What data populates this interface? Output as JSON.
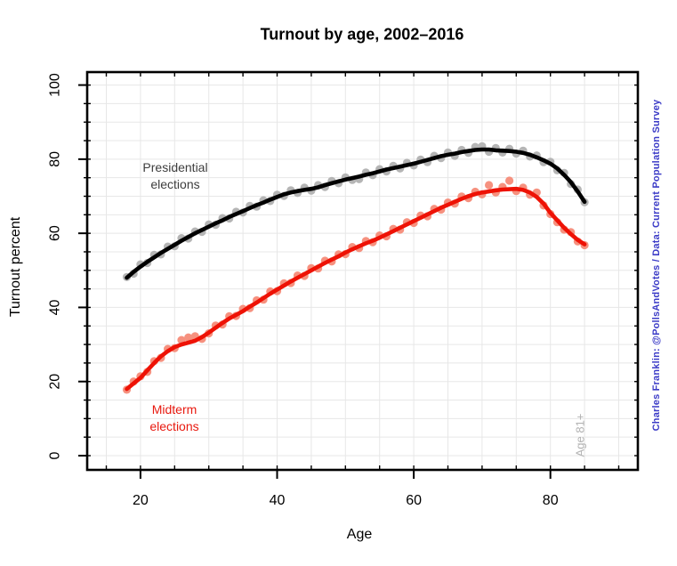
{
  "title": "Turnout by age, 2002–2016",
  "credit": "Charles Franklin: @PollsAndVotes / Data: Current Population Survey",
  "annotations": {
    "presidential": "Presidential\nelections",
    "midterm": "Midterm\nelections",
    "age81": "Age 81+"
  },
  "colors": {
    "background": "#ffffff",
    "box": "#000000",
    "grid": "#e7e7e7",
    "tick": "#000000",
    "presidential_line": "#000000",
    "presidential_dots": "#b5b5b5",
    "midterm_line": "#ee1205",
    "midterm_dots": "#f6917f",
    "credit_text": "#3c3cc7",
    "age81_text": "#b2b2b2"
  },
  "chart_data": {
    "type": "line+scatter",
    "title": "Turnout by age, 2002–2016",
    "xlabel": "Age",
    "ylabel": "Turnout percent",
    "x_ticks": [
      20,
      40,
      60,
      80
    ],
    "y_ticks": [
      0,
      20,
      40,
      60,
      80,
      100
    ],
    "x_minor_step": 5,
    "y_minor_step": 5,
    "x_minor_range": [
      15,
      90
    ],
    "y_minor_range": [
      0,
      100
    ],
    "xlim": [
      12.2,
      92.8
    ],
    "ylim": [
      -3.84,
      103.5
    ],
    "grid": true,
    "legend_position": "annotated-on-plot",
    "series": [
      {
        "name": "Presidential elections",
        "line_color": "#000000",
        "dot_color": "#b5b5b5",
        "smooth": [
          [
            18,
            48
          ],
          [
            19,
            49.6
          ],
          [
            20,
            51
          ],
          [
            21,
            52.3
          ],
          [
            22,
            53.5
          ],
          [
            23,
            54.7
          ],
          [
            24,
            55.8
          ],
          [
            25,
            56.9
          ],
          [
            26,
            58
          ],
          [
            27,
            59
          ],
          [
            28,
            60
          ],
          [
            29,
            60.9
          ],
          [
            30,
            61.8
          ],
          [
            31,
            62.7
          ],
          [
            32,
            63.5
          ],
          [
            33,
            64.4
          ],
          [
            34,
            65.2
          ],
          [
            35,
            66
          ],
          [
            36,
            66.8
          ],
          [
            37,
            67.6
          ],
          [
            38,
            68.3
          ],
          [
            39,
            69.1
          ],
          [
            40,
            69.8
          ],
          [
            41,
            70.5
          ],
          [
            42,
            71
          ],
          [
            43,
            71.4
          ],
          [
            44,
            71.7
          ],
          [
            45,
            72
          ],
          [
            46,
            72.4
          ],
          [
            47,
            73
          ],
          [
            48,
            73.5
          ],
          [
            49,
            74
          ],
          [
            50,
            74.5
          ],
          [
            51,
            74.9
          ],
          [
            52,
            75.3
          ],
          [
            53,
            75.8
          ],
          [
            54,
            76.2
          ],
          [
            55,
            76.7
          ],
          [
            56,
            77.2
          ],
          [
            57,
            77.6
          ],
          [
            58,
            78
          ],
          [
            59,
            78.4
          ],
          [
            60,
            78.8
          ],
          [
            61,
            79.3
          ],
          [
            62,
            79.8
          ],
          [
            63,
            80.3
          ],
          [
            64,
            80.8
          ],
          [
            65,
            81.2
          ],
          [
            66,
            81.5
          ],
          [
            67,
            81.9
          ],
          [
            68,
            82.2
          ],
          [
            69,
            82.5
          ],
          [
            70,
            82.6
          ],
          [
            71,
            82.6
          ],
          [
            72,
            82.4
          ],
          [
            73,
            82.3
          ],
          [
            74,
            82.2
          ],
          [
            75,
            82
          ],
          [
            76,
            81.7
          ],
          [
            77,
            81.2
          ],
          [
            78,
            80.5
          ],
          [
            79,
            79.7
          ],
          [
            80,
            78.8
          ],
          [
            81,
            77.5
          ],
          [
            82,
            75.8
          ],
          [
            83,
            73.8
          ],
          [
            84,
            71.3
          ],
          [
            85,
            68.5
          ]
        ],
        "points": [
          [
            18,
            48.2
          ],
          [
            19,
            49.1
          ],
          [
            20,
            51.6
          ],
          [
            21,
            52
          ],
          [
            22,
            54.2
          ],
          [
            23,
            54.3
          ],
          [
            24,
            56.4
          ],
          [
            25,
            56.5
          ],
          [
            26,
            58.7
          ],
          [
            27,
            58.6
          ],
          [
            28,
            60.5
          ],
          [
            29,
            60.4
          ],
          [
            30,
            62.4
          ],
          [
            31,
            62.3
          ],
          [
            32,
            64.1
          ],
          [
            33,
            64
          ],
          [
            34,
            65.8
          ],
          [
            35,
            65.6
          ],
          [
            36,
            67.4
          ],
          [
            37,
            67.2
          ],
          [
            38,
            68.9
          ],
          [
            39,
            68.7
          ],
          [
            40,
            70.4
          ],
          [
            41,
            70.1
          ],
          [
            42,
            71.6
          ],
          [
            43,
            70.9
          ],
          [
            44,
            72.3
          ],
          [
            45,
            71.5
          ],
          [
            46,
            73
          ],
          [
            47,
            72.5
          ],
          [
            48,
            74.1
          ],
          [
            49,
            73.5
          ],
          [
            50,
            75.1
          ],
          [
            51,
            74.4
          ],
          [
            52,
            74.6
          ],
          [
            53,
            76.4
          ],
          [
            54,
            75.7
          ],
          [
            55,
            77.3
          ],
          [
            56,
            76.7
          ],
          [
            57,
            78.2
          ],
          [
            58,
            77.5
          ],
          [
            59,
            79
          ],
          [
            60,
            78.3
          ],
          [
            61,
            79.9
          ],
          [
            62,
            79.2
          ],
          [
            63,
            80.9
          ],
          [
            64,
            80.3
          ],
          [
            65,
            81.8
          ],
          [
            66,
            80.9
          ],
          [
            67,
            82.5
          ],
          [
            68,
            81.7
          ],
          [
            69,
            83.3
          ],
          [
            70,
            83.5
          ],
          [
            71,
            82
          ],
          [
            72,
            83
          ],
          [
            73,
            81.8
          ],
          [
            74,
            82.8
          ],
          [
            75,
            81.5
          ],
          [
            76,
            82.3
          ],
          [
            77,
            80.7
          ],
          [
            78,
            81
          ],
          [
            79,
            79.2
          ],
          [
            80,
            79.3
          ],
          [
            81,
            77
          ],
          [
            82,
            76.3
          ],
          [
            83,
            73.3
          ],
          [
            84,
            71.8
          ],
          [
            85,
            68.4
          ]
        ]
      },
      {
        "name": "Midterm elections",
        "line_color": "#ee1205",
        "dot_color": "#f6917f",
        "smooth": [
          [
            18,
            18
          ],
          [
            19,
            19.5
          ],
          [
            20,
            21
          ],
          [
            21,
            23
          ],
          [
            22,
            25
          ],
          [
            23,
            26.8
          ],
          [
            24,
            28.2
          ],
          [
            25,
            29.3
          ],
          [
            26,
            30
          ],
          [
            27,
            30.5
          ],
          [
            28,
            31
          ],
          [
            29,
            32
          ],
          [
            30,
            33.2
          ],
          [
            31,
            34.5
          ],
          [
            32,
            35.8
          ],
          [
            33,
            37
          ],
          [
            34,
            38
          ],
          [
            35,
            39
          ],
          [
            36,
            40.2
          ],
          [
            37,
            41.3
          ],
          [
            38,
            42.5
          ],
          [
            39,
            43.7
          ],
          [
            40,
            44.8
          ],
          [
            41,
            45.9
          ],
          [
            42,
            47
          ],
          [
            43,
            48
          ],
          [
            44,
            49
          ],
          [
            45,
            50
          ],
          [
            46,
            51
          ],
          [
            47,
            52
          ],
          [
            48,
            52.9
          ],
          [
            49,
            53.8
          ],
          [
            50,
            54.8
          ],
          [
            51,
            55.7
          ],
          [
            52,
            56.5
          ],
          [
            53,
            57.3
          ],
          [
            54,
            58
          ],
          [
            55,
            58.8
          ],
          [
            56,
            59.7
          ],
          [
            57,
            60.6
          ],
          [
            58,
            61.5
          ],
          [
            59,
            62.4
          ],
          [
            60,
            63.3
          ],
          [
            61,
            64.2
          ],
          [
            62,
            65.1
          ],
          [
            63,
            66
          ],
          [
            64,
            66.9
          ],
          [
            65,
            67.7
          ],
          [
            66,
            68.5
          ],
          [
            67,
            69.3
          ],
          [
            68,
            70
          ],
          [
            69,
            70.6
          ],
          [
            70,
            71
          ],
          [
            71,
            71.3
          ],
          [
            72,
            71.6
          ],
          [
            73,
            71.8
          ],
          [
            74,
            71.9
          ],
          [
            75,
            72
          ],
          [
            76,
            71.7
          ],
          [
            77,
            71
          ],
          [
            78,
            69.8
          ],
          [
            79,
            68
          ],
          [
            80,
            65.5
          ],
          [
            81,
            63.5
          ],
          [
            82,
            61.5
          ],
          [
            83,
            59.8
          ],
          [
            84,
            58.2
          ],
          [
            85,
            57
          ]
        ],
        "points": [
          [
            18,
            17.8
          ],
          [
            19,
            20
          ],
          [
            20,
            21.4
          ],
          [
            21,
            22.6
          ],
          [
            22,
            25.5
          ],
          [
            23,
            26.4
          ],
          [
            24,
            28.8
          ],
          [
            25,
            29
          ],
          [
            26,
            31.2
          ],
          [
            27,
            31.9
          ],
          [
            28,
            32.2
          ],
          [
            29,
            31.5
          ],
          [
            30,
            33
          ],
          [
            31,
            35.1
          ],
          [
            32,
            35.4
          ],
          [
            33,
            37.6
          ],
          [
            34,
            37.7
          ],
          [
            35,
            39.6
          ],
          [
            36,
            39.8
          ],
          [
            37,
            41.9
          ],
          [
            38,
            42.1
          ],
          [
            39,
            44.3
          ],
          [
            40,
            44.4
          ],
          [
            41,
            46.5
          ],
          [
            42,
            46.6
          ],
          [
            43,
            48.6
          ],
          [
            44,
            48.5
          ],
          [
            45,
            50.6
          ],
          [
            46,
            50.5
          ],
          [
            47,
            52.6
          ],
          [
            48,
            52.4
          ],
          [
            49,
            54.3
          ],
          [
            50,
            54.4
          ],
          [
            51,
            56.3
          ],
          [
            52,
            56
          ],
          [
            53,
            57.9
          ],
          [
            54,
            57.6
          ],
          [
            55,
            59.4
          ],
          [
            56,
            59.2
          ],
          [
            57,
            61.2
          ],
          [
            58,
            61
          ],
          [
            59,
            63
          ],
          [
            60,
            62.8
          ],
          [
            61,
            64.8
          ],
          [
            62,
            64.6
          ],
          [
            63,
            66.6
          ],
          [
            64,
            66.4
          ],
          [
            65,
            68.3
          ],
          [
            66,
            68
          ],
          [
            67,
            69.9
          ],
          [
            68,
            69.5
          ],
          [
            69,
            71.2
          ],
          [
            70,
            70.5
          ],
          [
            71,
            73
          ],
          [
            72,
            71
          ],
          [
            73,
            72.5
          ],
          [
            74,
            74.2
          ],
          [
            75,
            71.4
          ],
          [
            76,
            72.3
          ],
          [
            77,
            70.4
          ],
          [
            78,
            71
          ],
          [
            79,
            67.5
          ],
          [
            80,
            65.2
          ],
          [
            81,
            63
          ],
          [
            82,
            61
          ],
          [
            83,
            60.3
          ],
          [
            84,
            57.8
          ],
          [
            85,
            56.8
          ]
        ]
      }
    ]
  }
}
